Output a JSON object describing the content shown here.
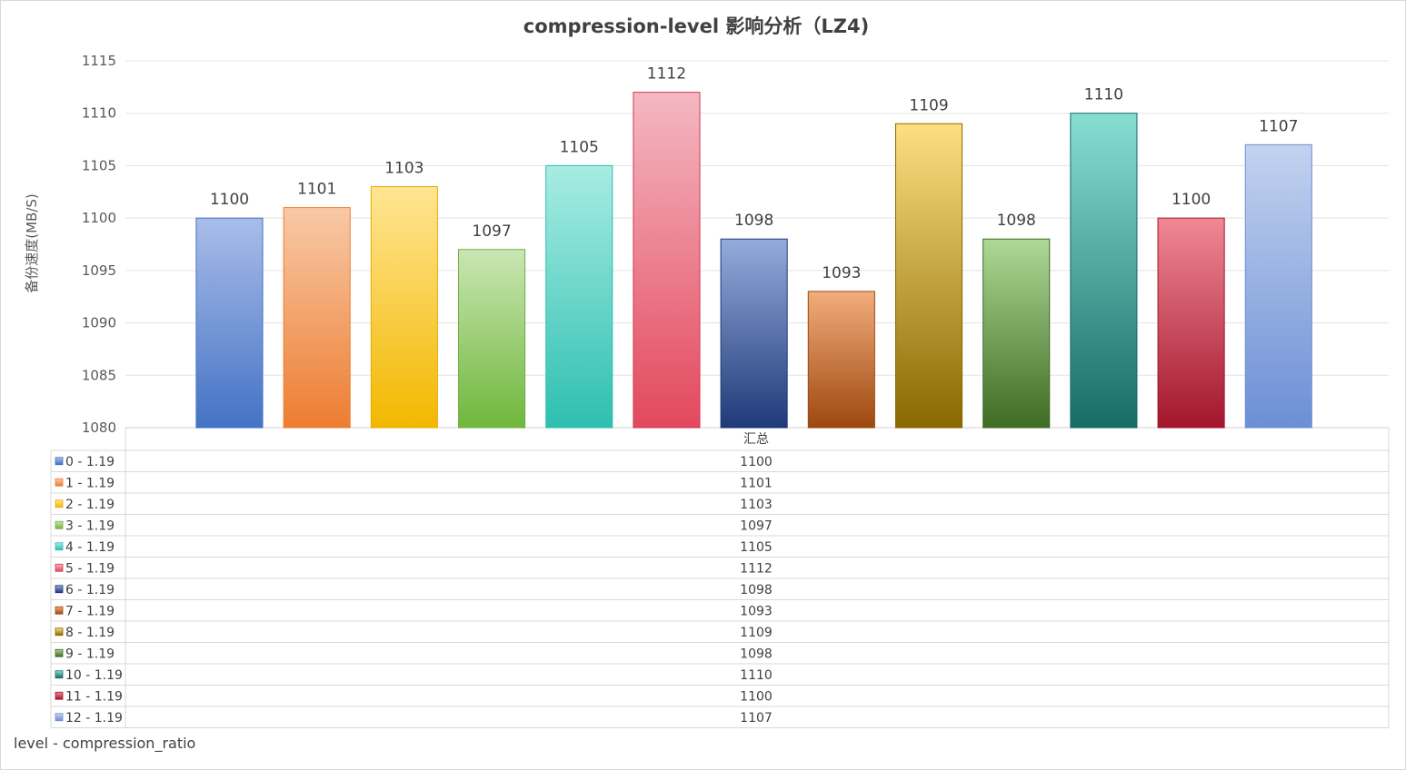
{
  "chart_data": {
    "type": "bar",
    "title": "compression-level 影响分析（LZ4)",
    "ylabel": "备份速度(MB/S)",
    "xlabel": "level - compression_ratio",
    "category_header": "汇总",
    "ylim": [
      1080,
      1115
    ],
    "yticks": [
      1080,
      1085,
      1090,
      1095,
      1100,
      1105,
      1110,
      1115
    ],
    "grid": true,
    "series": [
      {
        "name": "0 - 1.19",
        "value": 1100,
        "color_top": "#a9bde9",
        "color_bottom": "#4472c4",
        "stroke": "#4472c4"
      },
      {
        "name": "1 - 1.19",
        "value": 1101,
        "color_top": "#f8c9a7",
        "color_bottom": "#ed7d31",
        "stroke": "#ed7d31"
      },
      {
        "name": "2 - 1.19",
        "value": 1103,
        "color_top": "#ffe593",
        "color_bottom": "#f2b800",
        "stroke": "#e6ac00"
      },
      {
        "name": "3 - 1.19",
        "value": 1097,
        "color_top": "#c9e6b3",
        "color_bottom": "#70b73c",
        "stroke": "#70ad47"
      },
      {
        "name": "4 - 1.19",
        "value": 1105,
        "color_top": "#a8ece3",
        "color_bottom": "#2dbfb0",
        "stroke": "#2dbfb0"
      },
      {
        "name": "5 - 1.19",
        "value": 1112,
        "color_top": "#f4b8c2",
        "color_bottom": "#e3485d",
        "stroke": "#d33a50"
      },
      {
        "name": "6 - 1.19",
        "value": 1098,
        "color_top": "#94abdc",
        "color_bottom": "#1f3a78",
        "stroke": "#1f3a78"
      },
      {
        "name": "7 - 1.19",
        "value": 1093,
        "color_top": "#f2ad7c",
        "color_bottom": "#9e4810",
        "stroke": "#9e4810"
      },
      {
        "name": "8 - 1.19",
        "value": 1109,
        "color_top": "#fde083",
        "color_bottom": "#8a6800",
        "stroke": "#8a6800"
      },
      {
        "name": "9 - 1.19",
        "value": 1098,
        "color_top": "#aed996",
        "color_bottom": "#3f6b24",
        "stroke": "#3f6b24"
      },
      {
        "name": "10 - 1.19",
        "value": 1110,
        "color_top": "#87dfd3",
        "color_bottom": "#176c66",
        "stroke": "#176c66"
      },
      {
        "name": "11 - 1.19",
        "value": 1100,
        "color_top": "#f08896",
        "color_bottom": "#a3162b",
        "stroke": "#a3162b"
      },
      {
        "name": "12 - 1.19",
        "value": 1107,
        "color_top": "#c3d2ef",
        "color_bottom": "#6b8fd5",
        "stroke": "#6b8fd5"
      }
    ]
  }
}
